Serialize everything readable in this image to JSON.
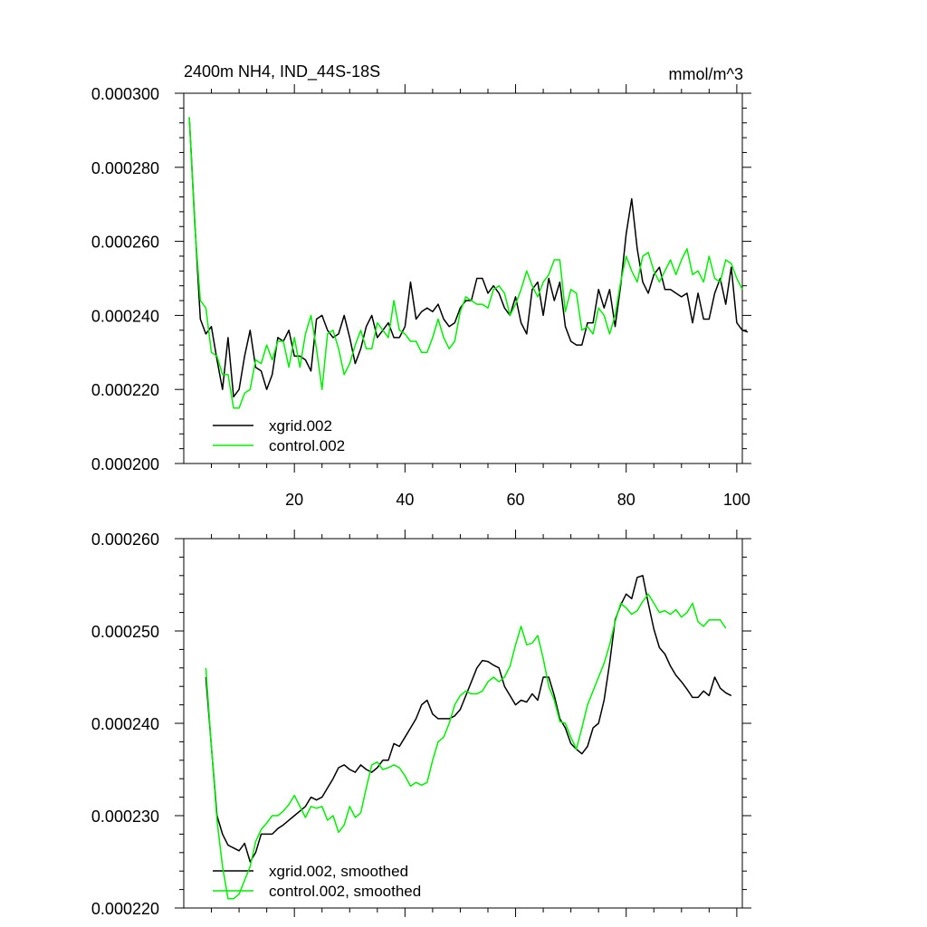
{
  "chart_data": [
    {
      "type": "line",
      "title_left": "2400m NH4, IND_44S-18S",
      "title_right": "mmol/m^3",
      "xlabel": "",
      "ylabel": "",
      "xlim": [
        0,
        101
      ],
      "ylim": [
        0.0002,
        0.0003
      ],
      "x_ticks": [
        20,
        40,
        60,
        80,
        100
      ],
      "x_tick_labels": [
        "20",
        "40",
        "60",
        "80",
        "100"
      ],
      "y_ticks": [
        0.0002,
        0.00022,
        0.00024,
        0.00026,
        0.00028,
        0.0003
      ],
      "y_tick_labels": [
        "0.000200",
        "0.000220",
        "0.000240",
        "0.000260",
        "0.000280",
        "0.000300"
      ],
      "legend_position": "bottom-left",
      "x_start": 1,
      "series": [
        {
          "name": "xgrid.002",
          "color": "#000000",
          "values": [
            0.0002935,
            0.000265,
            0.000239,
            0.000235,
            0.000237,
            0.000228,
            0.00022,
            0.000234,
            0.000218,
            0.00022,
            0.000229,
            0.000236,
            0.000226,
            0.000225,
            0.00022,
            0.000224,
            0.000234,
            0.000233,
            0.000236,
            0.000229,
            0.000229,
            0.000228,
            0.000225,
            0.000239,
            0.00024,
            0.000236,
            0.000234,
            0.000235,
            0.00024,
            0.000234,
            0.000227,
            0.000231,
            0.000237,
            0.00024,
            0.000234,
            0.000236,
            0.000238,
            0.000234,
            0.000234,
            0.000237,
            0.000249,
            0.000239,
            0.000241,
            0.000242,
            0.000241,
            0.000243,
            0.000239,
            0.000237,
            0.000238,
            0.000242,
            0.000244,
            0.000244,
            0.00025,
            0.00025,
            0.000246,
            0.000248,
            0.000246,
            0.000242,
            0.00024,
            0.000245,
            0.000238,
            0.000235,
            0.000247,
            0.000249,
            0.00024,
            0.00025,
            0.000244,
            0.000249,
            0.000237,
            0.000233,
            0.000232,
            0.000232,
            0.000238,
            0.000238,
            0.000247,
            0.000242,
            0.000247,
            0.000237,
            0.000248,
            0.000262,
            0.0002715,
            0.000258,
            0.000249,
            0.000246,
            0.000251,
            0.000253,
            0.000247,
            0.000247,
            0.000246,
            0.000245,
            0.000246,
            0.000238,
            0.000246,
            0.000239,
            0.000239,
            0.000246,
            0.00025,
            0.000243,
            0.000253,
            0.000238,
            0.000236,
            0.0002355
          ]
        },
        {
          "name": "control.002",
          "color": "#00ee00",
          "values": [
            0.0002935,
            0.000264,
            0.000244,
            0.000242,
            0.00023,
            0.000229,
            0.000224,
            0.000224,
            0.000215,
            0.000215,
            0.000219,
            0.00022,
            0.000228,
            0.000227,
            0.000232,
            0.000228,
            0.000233,
            0.000233,
            0.000226,
            0.000234,
            0.000226,
            0.000235,
            0.00024,
            0.000231,
            0.00022,
            0.000235,
            0.000236,
            0.000231,
            0.000224,
            0.000227,
            0.000232,
            0.000236,
            0.000231,
            0.000231,
            0.000238,
            0.000236,
            0.000234,
            0.000244,
            0.000236,
            0.000235,
            0.000233,
            0.000233,
            0.00023,
            0.00023,
            0.000234,
            0.000239,
            0.000234,
            0.000231,
            0.000233,
            0.000241,
            0.000245,
            0.000244,
            0.000243,
            0.000243,
            0.000242,
            0.000247,
            0.000248,
            0.000246,
            0.00024,
            0.000243,
            0.000247,
            0.000252,
            0.000248,
            0.000245,
            0.000249,
            0.000251,
            0.000255,
            0.000255,
            0.000241,
            0.000247,
            0.000246,
            0.000236,
            0.000237,
            0.000235,
            0.000242,
            0.00024,
            0.000235,
            0.00024,
            0.000249,
            0.000256,
            0.000252,
            0.000249,
            0.000256,
            0.000257,
            0.000252,
            0.000249,
            0.000252,
            0.000255,
            0.000251,
            0.000255,
            0.000258,
            0.000251,
            0.000252,
            0.000249,
            0.000256,
            0.00025,
            0.000249,
            0.000255,
            0.000254,
            0.00025,
            0.000247
          ]
        }
      ]
    },
    {
      "type": "line",
      "title_left": "",
      "title_right": "",
      "xlabel": "",
      "ylabel": "",
      "xlim": [
        0,
        101
      ],
      "ylim": [
        0.00022,
        0.00026
      ],
      "x_ticks": [
        20,
        40,
        60,
        80,
        100
      ],
      "x_tick_labels": [],
      "y_ticks": [
        0.00022,
        0.00023,
        0.00024,
        0.00025,
        0.00026
      ],
      "y_tick_labels": [
        "0.000220",
        "0.000230",
        "0.000240",
        "0.000250",
        "0.000260"
      ],
      "legend_position": "bottom-left",
      "x_start": 4,
      "series": [
        {
          "name": "xgrid.002, smoothed",
          "color": "#000000",
          "values": [
            0.000245,
            0.0002375,
            0.00023,
            0.000228,
            0.0002268,
            0.0002265,
            0.0002262,
            0.000227,
            0.000225,
            0.000226,
            0.000228,
            0.000228,
            0.000228,
            0.0002286,
            0.000229,
            0.0002295,
            0.00023,
            0.0002305,
            0.000231,
            0.000232,
            0.0002317,
            0.000232,
            0.000233,
            0.000234,
            0.0002352,
            0.0002355,
            0.000235,
            0.0002347,
            0.0002355,
            0.000235,
            0.0002347,
            0.0002352,
            0.000236,
            0.000236,
            0.0002378,
            0.0002375,
            0.0002385,
            0.0002395,
            0.0002405,
            0.000242,
            0.0002425,
            0.000241,
            0.0002405,
            0.0002405,
            0.0002405,
            0.0002408,
            0.0002415,
            0.000243,
            0.0002445,
            0.000246,
            0.0002468,
            0.0002467,
            0.0002463,
            0.000246,
            0.000244,
            0.000243,
            0.000242,
            0.0002425,
            0.0002423,
            0.0002432,
            0.0002425,
            0.000245,
            0.000245,
            0.000243,
            0.0002405,
            0.0002395,
            0.0002378,
            0.0002372,
            0.0002367,
            0.0002375,
            0.0002395,
            0.00024,
            0.0002425,
            0.0002465,
            0.0002512,
            0.0002528,
            0.000254,
            0.0002535,
            0.0002558,
            0.000256,
            0.000253,
            0.0002502,
            0.0002482,
            0.0002475,
            0.0002462,
            0.0002452,
            0.0002445,
            0.0002437,
            0.0002428,
            0.0002428,
            0.0002435,
            0.000243,
            0.000245,
            0.0002438,
            0.0002433,
            0.000243
          ]
        },
        {
          "name": "control.002, smoothed",
          "color": "#00ee00",
          "values": [
            0.000246,
            0.0002375,
            0.0002295,
            0.0002245,
            0.000221,
            0.000221,
            0.0002215,
            0.000223,
            0.0002245,
            0.0002272,
            0.0002285,
            0.0002292,
            0.00023,
            0.00023,
            0.0002305,
            0.0002312,
            0.0002322,
            0.000231,
            0.0002298,
            0.000231,
            0.0002308,
            0.000231,
            0.0002295,
            0.00023,
            0.0002282,
            0.000229,
            0.000231,
            0.0002298,
            0.0002303,
            0.000233,
            0.0002355,
            0.0002358,
            0.000235,
            0.0002352,
            0.0002355,
            0.0002352,
            0.0002343,
            0.0002332,
            0.0002336,
            0.0002333,
            0.0002336,
            0.000236,
            0.000238,
            0.0002385,
            0.00024,
            0.000242,
            0.000243,
            0.0002435,
            0.0002432,
            0.0002432,
            0.0002435,
            0.0002445,
            0.000245,
            0.0002445,
            0.000245,
            0.0002462,
            0.0002485,
            0.0002505,
            0.0002485,
            0.0002487,
            0.0002495,
            0.000247,
            0.000244,
            0.0002425,
            0.0002402,
            0.00024,
            0.0002385,
            0.0002372,
            0.0002395,
            0.000242,
            0.0002435,
            0.000245,
            0.0002465,
            0.0002485,
            0.000251,
            0.000253,
            0.0002525,
            0.0002518,
            0.0002522,
            0.0002532,
            0.000254,
            0.000253,
            0.000252,
            0.0002522,
            0.0002518,
            0.0002523,
            0.0002515,
            0.000252,
            0.000253,
            0.000251,
            0.0002505,
            0.0002512,
            0.0002512,
            0.0002512,
            0.0002503
          ]
        }
      ]
    }
  ]
}
